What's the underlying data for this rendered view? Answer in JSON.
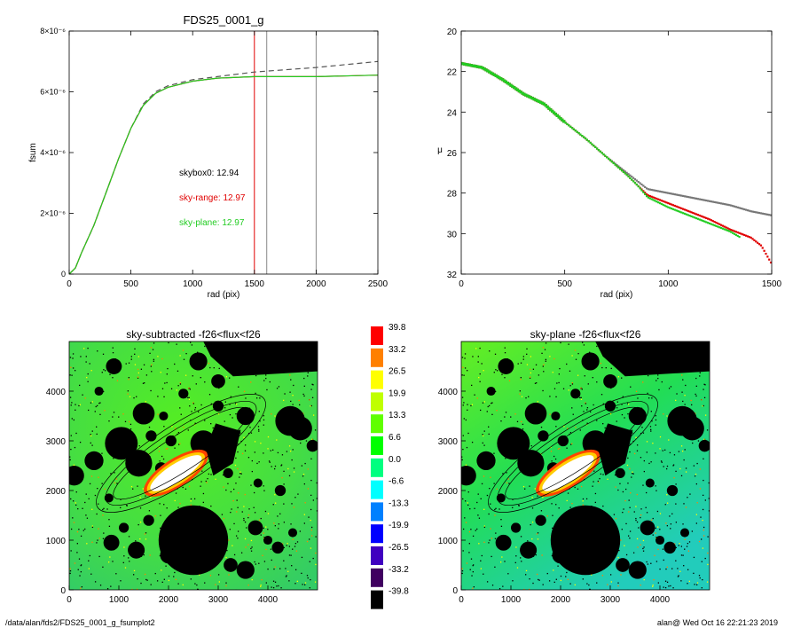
{
  "panels": {
    "fsum": {
      "title": "FDS25_0001_g",
      "xlabel": "rad (pix)",
      "ylabel": "fsum",
      "xticks": [
        "0",
        "500",
        "1000",
        "1500",
        "2000",
        "2500"
      ],
      "yticks": [
        "0",
        "2×10⁻⁶",
        "4×10⁻⁶",
        "6×10⁻⁶",
        "8×10⁻⁶"
      ],
      "annotations": [
        {
          "text": "skybox0: 12.94",
          "color": "#000000"
        },
        {
          "text": "sky-range: 12.97",
          "color": "#e00000"
        },
        {
          "text": "sky-plane: 12.97",
          "color": "#22cc22"
        }
      ]
    },
    "mu": {
      "xlabel": "rad (pix)",
      "ylabel": "μ",
      "xticks": [
        "0",
        "500",
        "1000",
        "1500"
      ],
      "yticks": [
        "20",
        "22",
        "24",
        "26",
        "28",
        "30",
        "32"
      ]
    },
    "img_left": {
      "title": "sky-subtracted -f26<flux<f26",
      "xticks": [
        "0",
        "1000",
        "2000",
        "3000",
        "4000"
      ],
      "yticks": [
        "0",
        "1000",
        "2000",
        "3000",
        "4000"
      ]
    },
    "img_right": {
      "title": "sky-plane -f26<flux<f26",
      "xticks": [
        "0",
        "1000",
        "2000",
        "3000",
        "4000"
      ],
      "yticks": [
        "0",
        "1000",
        "2000",
        "3000",
        "4000"
      ]
    },
    "colorbar": {
      "labels": [
        "39.8",
        "33.2",
        "26.5",
        "19.9",
        "13.3",
        "6.6",
        "0.0",
        "-6.6",
        "-13.3",
        "-19.9",
        "-26.5",
        "-33.2",
        "-39.8"
      ],
      "colors": [
        "#ff0000",
        "#ff8000",
        "#ffff00",
        "#c0ff00",
        "#60ff00",
        "#00ff00",
        "#00ff80",
        "#00ffff",
        "#0080ff",
        "#0000ff",
        "#4000c0",
        "#400060",
        "#000000"
      ]
    }
  },
  "footer": {
    "path": "/data/alan/fds2/FDS25_0001_g_fsumplot2",
    "stamp": "alan@  Wed Oct 16 22:21:23 2019"
  },
  "chart_data": [
    {
      "type": "line",
      "title": "FDS25_0001_g",
      "xlabel": "rad (pix)",
      "ylabel": "fsum",
      "xlim": [
        0,
        2500
      ],
      "ylim": [
        0,
        8e-06
      ],
      "vlines": [
        {
          "x": 1500,
          "color": "#e00000"
        },
        {
          "x": 1600,
          "color": "#888888"
        },
        {
          "x": 2000,
          "color": "#888888"
        }
      ],
      "series": [
        {
          "name": "skybox0: 12.94",
          "color": "#555555",
          "dash": true,
          "x": [
            0,
            50,
            100,
            200,
            300,
            400,
            500,
            600,
            700,
            800,
            1000,
            1200,
            1500,
            2000,
            2500
          ],
          "y": [
            0,
            2e-07,
            7e-07,
            1.6e-06,
            2.7e-06,
            3.8e-06,
            4.8e-06,
            5.6e-06,
            6e-06,
            6.2e-06,
            6.4e-06,
            6.5e-06,
            6.65e-06,
            6.8e-06,
            7e-06
          ]
        },
        {
          "name": "sky-range: 12.97",
          "color": "#e00000",
          "x": [
            0,
            50,
            100,
            200,
            300,
            400,
            500,
            600,
            700,
            800,
            1000,
            1200,
            1500,
            2000,
            2500
          ],
          "y": [
            0,
            2e-07,
            7e-07,
            1.6e-06,
            2.7e-06,
            3.8e-06,
            4.8e-06,
            5.55e-06,
            5.95e-06,
            6.15e-06,
            6.35e-06,
            6.45e-06,
            6.5e-06,
            6.5e-06,
            6.55e-06
          ]
        },
        {
          "name": "sky-plane: 12.97",
          "color": "#22cc22",
          "x": [
            0,
            50,
            100,
            200,
            300,
            400,
            500,
            600,
            700,
            800,
            1000,
            1200,
            1500,
            2000,
            2500
          ],
          "y": [
            0,
            2e-07,
            7e-07,
            1.6e-06,
            2.7e-06,
            3.8e-06,
            4.8e-06,
            5.55e-06,
            5.95e-06,
            6.15e-06,
            6.35e-06,
            6.45e-06,
            6.5e-06,
            6.5e-06,
            6.55e-06
          ]
        }
      ]
    },
    {
      "type": "scatter",
      "xlabel": "rad (pix)",
      "ylabel": "μ",
      "xlim": [
        0,
        1500
      ],
      "ylim": [
        32,
        20
      ],
      "series": [
        {
          "color": "#777777",
          "x": [
            0,
            100,
            200,
            300,
            400,
            500,
            600,
            700,
            800,
            850,
            900,
            1000,
            1100,
            1200,
            1300,
            1400,
            1500
          ],
          "y": [
            21.6,
            21.8,
            22.4,
            23.1,
            23.6,
            24.5,
            25.3,
            26.2,
            27.0,
            27.4,
            27.8,
            28.0,
            28.2,
            28.4,
            28.6,
            28.9,
            29.1
          ]
        },
        {
          "color": "#e00000",
          "x": [
            0,
            100,
            200,
            300,
            400,
            500,
            600,
            700,
            800,
            850,
            900,
            1000,
            1100,
            1200,
            1300,
            1400,
            1450,
            1500
          ],
          "y": [
            21.6,
            21.8,
            22.4,
            23.1,
            23.6,
            24.5,
            25.3,
            26.2,
            27.1,
            27.6,
            28.1,
            28.5,
            28.9,
            29.3,
            29.8,
            30.2,
            30.6,
            31.5
          ]
        },
        {
          "color": "#22cc22",
          "x": [
            0,
            100,
            200,
            300,
            400,
            500,
            600,
            700,
            800,
            850,
            900,
            1000,
            1100,
            1200,
            1300,
            1350
          ],
          "y": [
            21.6,
            21.8,
            22.4,
            23.1,
            23.6,
            24.5,
            25.3,
            26.2,
            27.1,
            27.6,
            28.2,
            28.7,
            29.1,
            29.5,
            29.9,
            30.2
          ]
        }
      ]
    },
    {
      "type": "heatmap",
      "title": "sky-subtracted -f26<flux<f26",
      "xlim": [
        0,
        5000
      ],
      "ylim": [
        0,
        5000
      ]
    },
    {
      "type": "heatmap",
      "title": "sky-plane -f26<flux<f26",
      "xlim": [
        0,
        5000
      ],
      "ylim": [
        0,
        5000
      ]
    }
  ]
}
